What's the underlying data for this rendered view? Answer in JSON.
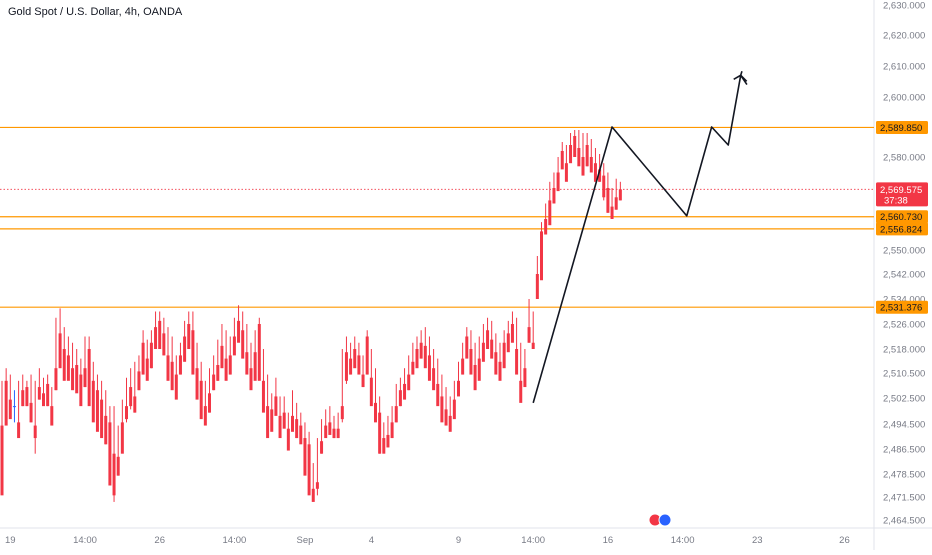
{
  "header": {
    "title": "Gold Spot / U.S. Dollar, 4h, OANDA"
  },
  "colors": {
    "up": "#2962ff",
    "down": "#f23645",
    "level": "#ff9800",
    "level_label_bg": "#ff9800",
    "price_label_bg": "#f23645",
    "axis_text": "#787b86",
    "projection": "#131722",
    "current_line": "#f23645"
  },
  "price_label": {
    "price": "2,569.575",
    "countdown": "37:38"
  },
  "chart_data": {
    "type": "candlestick",
    "title": "Gold Spot / U.S. Dollar, 4h, OANDA",
    "ylim": [
      2461,
      2632
    ],
    "y_ticks": [
      {
        "value": 2630,
        "label": "2,630.000"
      },
      {
        "value": 2620,
        "label": "2,620.000"
      },
      {
        "value": 2610,
        "label": "2,610.000"
      },
      {
        "value": 2600,
        "label": "2,600.000"
      },
      {
        "value": 2580,
        "label": "2,580.000"
      },
      {
        "value": 2550,
        "label": "2,550.000"
      },
      {
        "value": 2542,
        "label": "2,542.000"
      },
      {
        "value": 2534,
        "label": "2,534.000"
      },
      {
        "value": 2526,
        "label": "2,526.000"
      },
      {
        "value": 2518,
        "label": "2,518.000"
      },
      {
        "value": 2510.5,
        "label": "2,510.500"
      },
      {
        "value": 2502.5,
        "label": "2,502.500"
      },
      {
        "value": 2494.5,
        "label": "2,494.500"
      },
      {
        "value": 2486.5,
        "label": "2,486.500"
      },
      {
        "value": 2478.5,
        "label": "2,478.500"
      },
      {
        "value": 2471.5,
        "label": "2,471.500"
      },
      {
        "value": 2464.5,
        "label": "2,464.500"
      }
    ],
    "x_ticks": [
      {
        "index": 2,
        "label": "19"
      },
      {
        "index": 20,
        "label": "14:00"
      },
      {
        "index": 38,
        "label": "26"
      },
      {
        "index": 56,
        "label": "14:00"
      },
      {
        "index": 73,
        "label": "Sep"
      },
      {
        "index": 89,
        "label": "4"
      },
      {
        "index": 110,
        "label": "9"
      },
      {
        "index": 128,
        "label": "14:00"
      },
      {
        "index": 146,
        "label": "16"
      },
      {
        "index": 164,
        "label": "14:00"
      },
      {
        "index": 182,
        "label": "23"
      },
      {
        "index": 203,
        "label": "26"
      }
    ],
    "levels": [
      {
        "value": 2589.85,
        "label": "2,589.850"
      },
      {
        "value": 2560.73,
        "label": "2,560.730"
      },
      {
        "value": 2556.824,
        "label": "2,556.824"
      },
      {
        "value": 2531.376,
        "label": "2,531.376"
      }
    ],
    "current_price": 2569.575,
    "projection_path": [
      {
        "index": 128,
        "value": 2501
      },
      {
        "index": 147,
        "value": 2590
      },
      {
        "index": 165,
        "value": 2561
      },
      {
        "index": 171,
        "value": 2590
      },
      {
        "index": 175,
        "value": 2584
      },
      {
        "index": 178,
        "value": 2607
      },
      {
        "index": 179.5,
        "value": 2604
      },
      {
        "index": 178.3,
        "value": 2608.3
      },
      {
        "index": 180.3,
        "value": 2605.6
      }
    ],
    "candles": [
      [
        2494,
        2508,
        2480,
        2472
      ],
      [
        2508,
        2512,
        2502,
        2494
      ],
      [
        2502,
        2510,
        2500,
        2496
      ],
      [
        2500,
        2505,
        2495,
        2500
      ],
      [
        2495,
        2508,
        2493,
        2490
      ],
      [
        2505,
        2510,
        2500,
        2500
      ],
      [
        2506,
        2508,
        2500,
        2500
      ],
      [
        2501,
        2510,
        2495,
        2495
      ],
      [
        2494,
        2508,
        2485,
        2490
      ],
      [
        2506,
        2512,
        2502,
        2502
      ],
      [
        2504,
        2509,
        2502,
        2500
      ],
      [
        2507,
        2510,
        2500,
        2500
      ],
      [
        2500,
        2506,
        2496,
        2494
      ],
      [
        2512,
        2528,
        2505,
        2505
      ],
      [
        2523,
        2531,
        2517,
        2512
      ],
      [
        2518,
        2525,
        2510,
        2508
      ],
      [
        2516,
        2522,
        2509,
        2508
      ],
      [
        2512,
        2520,
        2507,
        2505
      ],
      [
        2513,
        2518,
        2506,
        2504
      ],
      [
        2510,
        2515,
        2505,
        2500
      ],
      [
        2512,
        2522,
        2506,
        2506
      ],
      [
        2518,
        2522,
        2507,
        2500
      ],
      [
        2508,
        2514,
        2500,
        2495
      ],
      [
        2505,
        2510,
        2497,
        2492
      ],
      [
        2502,
        2508,
        2494,
        2490
      ],
      [
        2497,
        2505,
        2488,
        2488
      ],
      [
        2495,
        2500,
        2480,
        2475
      ],
      [
        2485,
        2500,
        2470,
        2472
      ],
      [
        2484,
        2494,
        2478,
        2478
      ],
      [
        2495,
        2502,
        2487,
        2485
      ],
      [
        2500,
        2509,
        2495,
        2496
      ],
      [
        2506,
        2512,
        2499,
        2500
      ],
      [
        2503,
        2514,
        2498,
        2498
      ],
      [
        2511,
        2516,
        2505,
        2505
      ],
      [
        2520,
        2524,
        2510,
        2510
      ],
      [
        2515,
        2521,
        2509,
        2508
      ],
      [
        2520,
        2524,
        2512,
        2512
      ],
      [
        2525,
        2530,
        2519,
        2518
      ],
      [
        2527,
        2530,
        2520,
        2518
      ],
      [
        2523,
        2528,
        2516,
        2516
      ],
      [
        2516,
        2525,
        2511,
        2508
      ],
      [
        2514,
        2522,
        2508,
        2505
      ],
      [
        2510,
        2516,
        2505,
        2502
      ],
      [
        2516,
        2520,
        2510,
        2510
      ],
      [
        2522,
        2527,
        2516,
        2514
      ],
      [
        2526,
        2530,
        2520,
        2518
      ],
      [
        2524,
        2530,
        2516,
        2510
      ],
      [
        2512,
        2520,
        2506,
        2502
      ],
      [
        2508,
        2514,
        2498,
        2496
      ],
      [
        2500,
        2508,
        2495,
        2494
      ],
      [
        2504,
        2512,
        2498,
        2498
      ],
      [
        2510,
        2516,
        2505,
        2505
      ],
      [
        2513,
        2521,
        2508,
        2508
      ],
      [
        2519,
        2526,
        2513,
        2512
      ],
      [
        2515,
        2524,
        2510,
        2508
      ],
      [
        2516,
        2522,
        2510,
        2510
      ],
      [
        2522,
        2528,
        2517,
        2516
      ],
      [
        2527,
        2532,
        2521,
        2520
      ],
      [
        2524,
        2530,
        2517,
        2515
      ],
      [
        2517,
        2526,
        2512,
        2510
      ],
      [
        2512,
        2520,
        2508,
        2505
      ],
      [
        2517,
        2524,
        2511,
        2508
      ],
      [
        2526,
        2528,
        2515,
        2508
      ],
      [
        2508,
        2518,
        2504,
        2498
      ],
      [
        2500,
        2510,
        2495,
        2490
      ],
      [
        2499,
        2504,
        2494,
        2492
      ],
      [
        2503,
        2509,
        2498,
        2497
      ],
      [
        2497,
        2503,
        2493,
        2490
      ],
      [
        2498,
        2503,
        2494,
        2493
      ],
      [
        2493,
        2498,
        2488,
        2486
      ],
      [
        2497,
        2505,
        2493,
        2492
      ],
      [
        2496,
        2501,
        2490,
        2490
      ],
      [
        2494,
        2498,
        2489,
        2488
      ],
      [
        2490,
        2495,
        2483,
        2478
      ],
      [
        2488,
        2492,
        2476,
        2472
      ],
      [
        2474,
        2482,
        2472,
        2470
      ],
      [
        2476,
        2490,
        2472,
        2474
      ],
      [
        2489,
        2496,
        2485,
        2485
      ],
      [
        2494,
        2499,
        2491,
        2490
      ],
      [
        2495,
        2500,
        2492,
        2491
      ],
      [
        2493,
        2497,
        2490,
        2490
      ],
      [
        2493,
        2498,
        2490,
        2490
      ],
      [
        2500,
        2518,
        2495,
        2496
      ],
      [
        2517,
        2522,
        2507,
        2508
      ],
      [
        2515,
        2520,
        2510,
        2510
      ],
      [
        2518,
        2522,
        2513,
        2512
      ],
      [
        2516,
        2520,
        2512,
        2510
      ],
      [
        2510,
        2516,
        2506,
        2506
      ],
      [
        2522,
        2524,
        2510,
        2510
      ],
      [
        2509,
        2518,
        2505,
        2500
      ],
      [
        2501,
        2512,
        2498,
        2495
      ],
      [
        2498,
        2503,
        2485,
        2485
      ],
      [
        2490,
        2495,
        2486,
        2485
      ],
      [
        2491,
        2497,
        2487,
        2487
      ],
      [
        2495,
        2500,
        2490,
        2490
      ],
      [
        2500,
        2507,
        2495,
        2495
      ],
      [
        2505,
        2509,
        2500,
        2500
      ],
      [
        2507,
        2512,
        2503,
        2502
      ],
      [
        2510,
        2516,
        2505,
        2505
      ],
      [
        2514,
        2520,
        2510,
        2510
      ],
      [
        2518,
        2522,
        2513,
        2512
      ],
      [
        2520,
        2524,
        2515,
        2515
      ],
      [
        2519,
        2525,
        2514,
        2512
      ],
      [
        2516,
        2522,
        2510,
        2508
      ],
      [
        2512,
        2518,
        2506,
        2505
      ],
      [
        2507,
        2515,
        2502,
        2500
      ],
      [
        2503,
        2510,
        2497,
        2495
      ],
      [
        2499,
        2506,
        2495,
        2494
      ],
      [
        2497,
        2503,
        2493,
        2492
      ],
      [
        2502,
        2508,
        2497,
        2496
      ],
      [
        2508,
        2514,
        2504,
        2503
      ],
      [
        2515,
        2520,
        2510,
        2510
      ],
      [
        2522,
        2525,
        2516,
        2515
      ],
      [
        2518,
        2524,
        2512,
        2510
      ],
      [
        2513,
        2520,
        2508,
        2505
      ],
      [
        2515,
        2522,
        2510,
        2508
      ],
      [
        2520,
        2526,
        2515,
        2514
      ],
      [
        2524,
        2528,
        2520,
        2518
      ],
      [
        2521,
        2527,
        2516,
        2515
      ],
      [
        2517,
        2523,
        2512,
        2510
      ],
      [
        2514,
        2520,
        2510,
        2508
      ],
      [
        2520,
        2524,
        2514,
        2512
      ],
      [
        2523,
        2527,
        2518,
        2517
      ],
      [
        2526,
        2530,
        2522,
        2520
      ],
      [
        2518,
        2528,
        2512,
        2510
      ],
      [
        2508,
        2520,
        2502,
        2501
      ],
      [
        2512,
        2518,
        2508,
        2506
      ],
      [
        2525,
        2534,
        2520,
        2520
      ],
      [
        2520,
        2530,
        2518,
        2518
      ],
      [
        2542,
        2548,
        2540,
        2534
      ],
      [
        2556,
        2559,
        2542,
        2540
      ],
      [
        2560,
        2565,
        2555,
        2555
      ],
      [
        2566,
        2572,
        2560,
        2558
      ],
      [
        2570,
        2575,
        2566,
        2565
      ],
      [
        2575,
        2580,
        2570,
        2569
      ],
      [
        2582,
        2585,
        2578,
        2576
      ],
      [
        2578,
        2584,
        2575,
        2572
      ],
      [
        2584,
        2588,
        2579,
        2578
      ],
      [
        2587,
        2589,
        2581,
        2580
      ],
      [
        2583,
        2589,
        2579,
        2577
      ],
      [
        2580,
        2588,
        2575,
        2574
      ],
      [
        2584,
        2588,
        2577,
        2577
      ],
      [
        2580,
        2586,
        2576,
        2575
      ],
      [
        2578,
        2583,
        2573,
        2572
      ],
      [
        2576,
        2581,
        2572,
        2572
      ],
      [
        2574,
        2578,
        2566,
        2567
      ],
      [
        2570,
        2575,
        2562,
        2562
      ],
      [
        2564,
        2570,
        2561,
        2560
      ],
      [
        2567,
        2573,
        2563,
        2563
      ],
      [
        2569.575,
        2572,
        2566,
        2566
      ]
    ]
  }
}
